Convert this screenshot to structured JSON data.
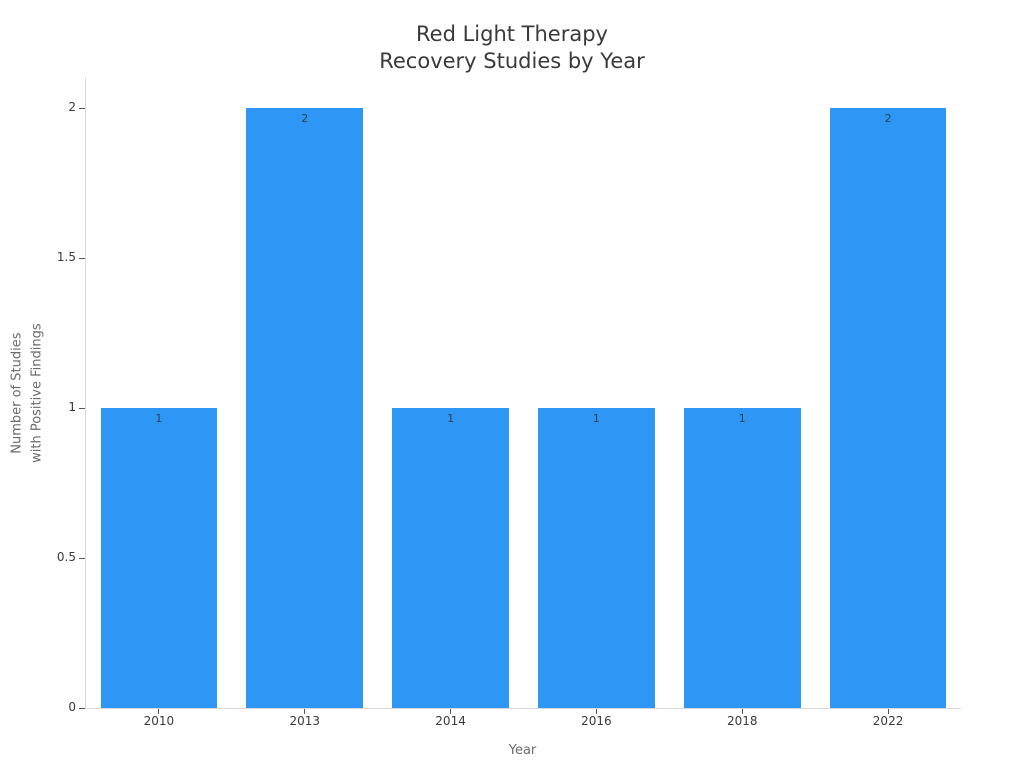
{
  "chart_data": {
    "type": "bar",
    "title": "Red Light Therapy\nRecovery Studies by Year",
    "xlabel": "Year",
    "ylabel": "Number of Studies\nwith Positive Findings",
    "categories": [
      "2010",
      "2013",
      "2014",
      "2016",
      "2018",
      "2022"
    ],
    "values": [
      1,
      2,
      1,
      1,
      1,
      2
    ],
    "bar_labels": [
      "1",
      "2",
      "1",
      "1",
      "1",
      "2"
    ],
    "ylim": [
      0,
      2.1
    ],
    "yticks": [
      0,
      0.5,
      1,
      1.5,
      2
    ],
    "ytick_labels": [
      "0",
      "0.5",
      "1",
      "1.5",
      "2"
    ],
    "grid": false,
    "legend": null,
    "bar_width_fraction": 0.8,
    "colors": {
      "bar": "#2E96F5",
      "title_text": "#3a3a3a",
      "tick_text": "#3a3a3a",
      "axis_label_text": "#6b6b6b",
      "bar_label_text": "#333f48",
      "spine": "#d9d9d9",
      "tick_mark": "#555555",
      "background": "#ffffff"
    }
  }
}
